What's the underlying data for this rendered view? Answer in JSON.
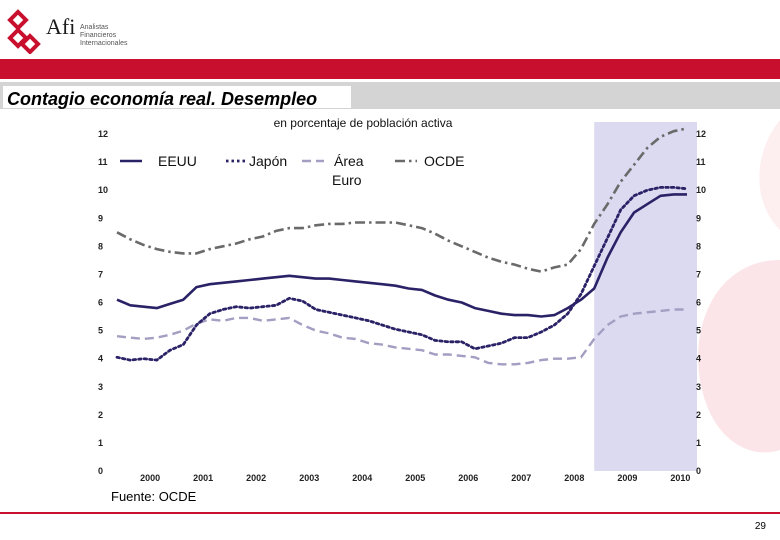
{
  "brand": {
    "name": "Afi",
    "tagline_1": "Analistas",
    "tagline_2": "Financieros",
    "tagline_3": "Internacionales",
    "accent_color": "#c8102e"
  },
  "slide_title": "Contagio economía real. Desempleo",
  "source": "Fuente: OCDE",
  "page_number": "29",
  "chart_data": {
    "type": "line",
    "subtitle": "en porcentaje de población activa",
    "ylim": [
      0,
      12
    ],
    "yticks": [
      "0",
      "1",
      "2",
      "3",
      "4",
      "5",
      "6",
      "7",
      "8",
      "9",
      "10",
      "11",
      "12"
    ],
    "xticks": [
      "2000",
      "2001",
      "2002",
      "2003",
      "2004",
      "2005",
      "2006",
      "2007",
      "2008",
      "2009",
      "2010"
    ],
    "xlim": [
      1999.75,
      2010.5
    ],
    "shaded_range": [
      2008.75,
      2010.5
    ],
    "legend_position": "top",
    "series": [
      {
        "name": "EEUU",
        "color": "#2a2266",
        "style": "solid",
        "points": [
          [
            1999.75,
            6.1
          ],
          [
            2000.0,
            5.9
          ],
          [
            2000.25,
            5.85
          ],
          [
            2000.5,
            5.8
          ],
          [
            2000.75,
            5.95
          ],
          [
            2001.0,
            6.1
          ],
          [
            2001.25,
            6.55
          ],
          [
            2001.5,
            6.65
          ],
          [
            2001.75,
            6.7
          ],
          [
            2002.0,
            6.75
          ],
          [
            2002.25,
            6.8
          ],
          [
            2002.5,
            6.85
          ],
          [
            2002.75,
            6.9
          ],
          [
            2003.0,
            6.95
          ],
          [
            2003.25,
            6.9
          ],
          [
            2003.5,
            6.85
          ],
          [
            2003.75,
            6.85
          ],
          [
            2004.0,
            6.8
          ],
          [
            2004.25,
            6.75
          ],
          [
            2004.5,
            6.7
          ],
          [
            2004.75,
            6.65
          ],
          [
            2005.0,
            6.6
          ],
          [
            2005.25,
            6.5
          ],
          [
            2005.5,
            6.45
          ],
          [
            2005.75,
            6.25
          ],
          [
            2006.0,
            6.1
          ],
          [
            2006.25,
            6.0
          ],
          [
            2006.5,
            5.8
          ],
          [
            2006.75,
            5.7
          ],
          [
            2007.0,
            5.6
          ],
          [
            2007.25,
            5.55
          ],
          [
            2007.5,
            5.55
          ],
          [
            2007.75,
            5.5
          ],
          [
            2008.0,
            5.55
          ],
          [
            2008.25,
            5.8
          ],
          [
            2008.5,
            6.1
          ],
          [
            2008.75,
            6.5
          ],
          [
            2009.0,
            7.6
          ],
          [
            2009.25,
            8.5
          ],
          [
            2009.5,
            9.2
          ],
          [
            2009.75,
            9.5
          ],
          [
            2010.0,
            9.8
          ],
          [
            2010.25,
            9.85
          ],
          [
            2010.5,
            9.85
          ]
        ]
      },
      {
        "name": "Japón",
        "color": "#2a2266",
        "style": "dotted",
        "points": [
          [
            1999.75,
            4.05
          ],
          [
            2000.0,
            3.95
          ],
          [
            2000.25,
            4.0
          ],
          [
            2000.5,
            3.95
          ],
          [
            2000.75,
            4.3
          ],
          [
            2001.0,
            4.5
          ],
          [
            2001.25,
            5.2
          ],
          [
            2001.5,
            5.6
          ],
          [
            2001.75,
            5.75
          ],
          [
            2002.0,
            5.85
          ],
          [
            2002.25,
            5.8
          ],
          [
            2002.5,
            5.85
          ],
          [
            2002.75,
            5.9
          ],
          [
            2003.0,
            6.15
          ],
          [
            2003.25,
            6.05
          ],
          [
            2003.5,
            5.75
          ],
          [
            2003.75,
            5.65
          ],
          [
            2004.0,
            5.55
          ],
          [
            2004.25,
            5.45
          ],
          [
            2004.5,
            5.35
          ],
          [
            2004.75,
            5.2
          ],
          [
            2005.0,
            5.05
          ],
          [
            2005.25,
            4.95
          ],
          [
            2005.5,
            4.85
          ],
          [
            2005.75,
            4.65
          ],
          [
            2006.0,
            4.6
          ],
          [
            2006.25,
            4.6
          ],
          [
            2006.5,
            4.35
          ],
          [
            2006.75,
            4.45
          ],
          [
            2007.0,
            4.55
          ],
          [
            2007.25,
            4.75
          ],
          [
            2007.5,
            4.75
          ],
          [
            2007.75,
            4.95
          ],
          [
            2008.0,
            5.2
          ],
          [
            2008.25,
            5.6
          ],
          [
            2008.5,
            6.3
          ],
          [
            2008.75,
            7.3
          ],
          [
            2009.0,
            8.3
          ],
          [
            2009.25,
            9.3
          ],
          [
            2009.5,
            9.8
          ],
          [
            2009.75,
            10.0
          ],
          [
            2010.0,
            10.1
          ],
          [
            2010.25,
            10.1
          ],
          [
            2010.5,
            10.05
          ]
        ]
      },
      {
        "name": "Área Euro",
        "color": "#a39ec2",
        "style": "dashed",
        "points": [
          [
            1999.75,
            4.8
          ],
          [
            2000.0,
            4.75
          ],
          [
            2000.25,
            4.7
          ],
          [
            2000.5,
            4.75
          ],
          [
            2000.75,
            4.85
          ],
          [
            2001.0,
            5.0
          ],
          [
            2001.25,
            5.25
          ],
          [
            2001.5,
            5.4
          ],
          [
            2001.75,
            5.35
          ],
          [
            2002.0,
            5.45
          ],
          [
            2002.25,
            5.45
          ],
          [
            2002.5,
            5.35
          ],
          [
            2002.75,
            5.4
          ],
          [
            2003.0,
            5.45
          ],
          [
            2003.25,
            5.2
          ],
          [
            2003.5,
            5.0
          ],
          [
            2003.75,
            4.9
          ],
          [
            2004.0,
            4.75
          ],
          [
            2004.25,
            4.7
          ],
          [
            2004.5,
            4.55
          ],
          [
            2004.75,
            4.5
          ],
          [
            2005.0,
            4.4
          ],
          [
            2005.25,
            4.35
          ],
          [
            2005.5,
            4.3
          ],
          [
            2005.75,
            4.15
          ],
          [
            2006.0,
            4.15
          ],
          [
            2006.25,
            4.1
          ],
          [
            2006.5,
            4.05
          ],
          [
            2006.75,
            3.85
          ],
          [
            2007.0,
            3.8
          ],
          [
            2007.25,
            3.8
          ],
          [
            2007.5,
            3.85
          ],
          [
            2007.75,
            3.95
          ],
          [
            2008.0,
            4.0
          ],
          [
            2008.25,
            4.0
          ],
          [
            2008.5,
            4.05
          ],
          [
            2008.75,
            4.7
          ],
          [
            2009.0,
            5.2
          ],
          [
            2009.25,
            5.5
          ],
          [
            2009.5,
            5.6
          ],
          [
            2009.75,
            5.65
          ],
          [
            2010.0,
            5.7
          ],
          [
            2010.25,
            5.75
          ],
          [
            2010.5,
            5.75
          ]
        ]
      },
      {
        "name": "OCDE",
        "color": "#6a6a6a",
        "style": "dashdot",
        "points": [
          [
            1999.75,
            8.5
          ],
          [
            2000.0,
            8.25
          ],
          [
            2000.25,
            8.05
          ],
          [
            2000.5,
            7.9
          ],
          [
            2000.75,
            7.8
          ],
          [
            2001.0,
            7.75
          ],
          [
            2001.25,
            7.75
          ],
          [
            2001.5,
            7.9
          ],
          [
            2001.75,
            8.0
          ],
          [
            2002.0,
            8.1
          ],
          [
            2002.25,
            8.25
          ],
          [
            2002.5,
            8.35
          ],
          [
            2002.75,
            8.55
          ],
          [
            2003.0,
            8.65
          ],
          [
            2003.25,
            8.65
          ],
          [
            2003.5,
            8.75
          ],
          [
            2003.75,
            8.8
          ],
          [
            2004.0,
            8.8
          ],
          [
            2004.25,
            8.85
          ],
          [
            2004.5,
            8.85
          ],
          [
            2004.75,
            8.85
          ],
          [
            2005.0,
            8.85
          ],
          [
            2005.25,
            8.75
          ],
          [
            2005.5,
            8.65
          ],
          [
            2005.75,
            8.45
          ],
          [
            2006.0,
            8.2
          ],
          [
            2006.25,
            8.0
          ],
          [
            2006.5,
            7.8
          ],
          [
            2006.75,
            7.6
          ],
          [
            2007.0,
            7.45
          ],
          [
            2007.25,
            7.35
          ],
          [
            2007.5,
            7.2
          ],
          [
            2007.75,
            7.1
          ],
          [
            2008.0,
            7.25
          ],
          [
            2008.25,
            7.35
          ],
          [
            2008.5,
            7.9
          ],
          [
            2008.75,
            8.8
          ],
          [
            2009.0,
            9.5
          ],
          [
            2009.25,
            10.3
          ],
          [
            2009.5,
            10.9
          ],
          [
            2009.75,
            11.5
          ],
          [
            2010.0,
            11.9
          ],
          [
            2010.25,
            12.1
          ],
          [
            2010.5,
            12.2
          ]
        ]
      }
    ]
  }
}
